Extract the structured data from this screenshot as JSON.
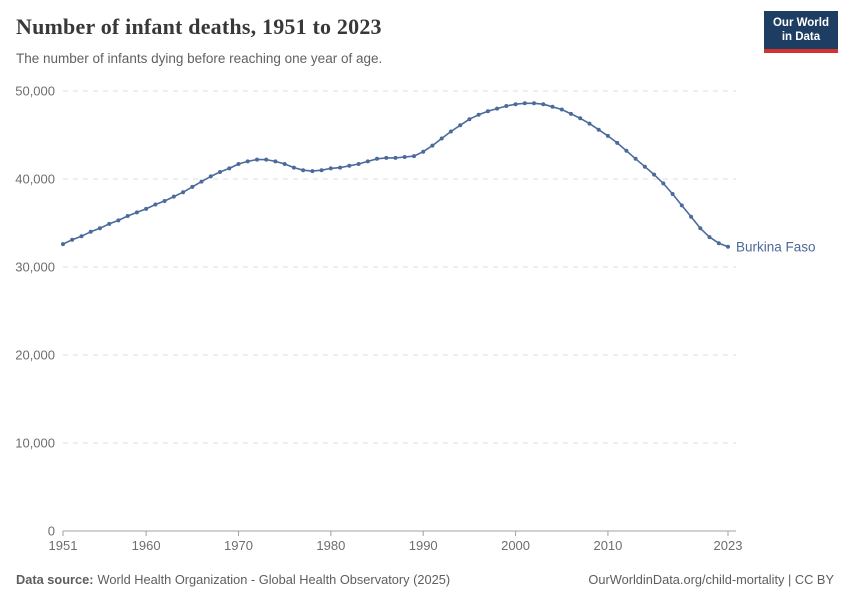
{
  "header": {
    "title": "Number of infant deaths, 1951 to 2023",
    "subtitle": "The number of infants dying before reaching one year of age.",
    "logo": {
      "line1": "Our World",
      "line2": "in Data"
    }
  },
  "chart_data": {
    "type": "line",
    "title": "Number of infant deaths, 1951 to 2023",
    "x": [
      1951,
      1952,
      1953,
      1954,
      1955,
      1956,
      1957,
      1958,
      1959,
      1960,
      1961,
      1962,
      1963,
      1964,
      1965,
      1966,
      1967,
      1968,
      1969,
      1970,
      1971,
      1972,
      1973,
      1974,
      1975,
      1976,
      1977,
      1978,
      1979,
      1980,
      1981,
      1982,
      1983,
      1984,
      1985,
      1986,
      1987,
      1988,
      1989,
      1990,
      1991,
      1992,
      1993,
      1994,
      1995,
      1996,
      1997,
      1998,
      1999,
      2000,
      2001,
      2002,
      2003,
      2004,
      2005,
      2006,
      2007,
      2008,
      2009,
      2010,
      2011,
      2012,
      2013,
      2014,
      2015,
      2016,
      2017,
      2018,
      2019,
      2020,
      2021,
      2022,
      2023
    ],
    "series": [
      {
        "name": "Burkina Faso",
        "color": "#4c6a9c",
        "values": [
          32600,
          33100,
          33500,
          34000,
          34400,
          34900,
          35300,
          35800,
          36200,
          36600,
          37100,
          37500,
          38000,
          38500,
          39100,
          39700,
          40300,
          40800,
          41200,
          41700,
          42000,
          42200,
          42200,
          42000,
          41700,
          41300,
          41000,
          40900,
          41000,
          41200,
          41300,
          41500,
          41700,
          42000,
          42300,
          42400,
          42400,
          42500,
          42600,
          43100,
          43800,
          44600,
          45400,
          46100,
          46800,
          47300,
          47700,
          48000,
          48300,
          48500,
          48600,
          48600,
          48500,
          48200,
          47900,
          47400,
          46900,
          46300,
          45600,
          44900,
          44100,
          43200,
          42300,
          41400,
          40500,
          39500,
          38300,
          37000,
          35700,
          34400,
          33400,
          32700,
          32300
        ]
      }
    ],
    "xlim": [
      1951,
      2023
    ],
    "ylim": [
      0,
      50000
    ],
    "x_ticks": [
      1951,
      1960,
      1970,
      1980,
      1990,
      2000,
      2010,
      2023
    ],
    "y_ticks": [
      0,
      10000,
      20000,
      30000,
      40000,
      50000
    ],
    "grid": "horizontal-dashed",
    "legend": "end-of-line-label",
    "end_label": "Burkina Faso",
    "markers": "point-per-year"
  },
  "footer": {
    "source_label": "Data source:",
    "source_value": "World Health Organization - Global Health Observatory (2025)",
    "link": "OurWorldinData.org/child-mortality | CC BY"
  },
  "colors": {
    "line": "#4c6a9c",
    "grid": "#dcdcdc",
    "axis": "#a1a1a1",
    "tick_text": "#6e6e6e",
    "title": "#383838",
    "subtitle": "#616161",
    "footer": "#5e5e5e",
    "logo_bg": "#1d3d63",
    "logo_red": "#d0342c"
  }
}
